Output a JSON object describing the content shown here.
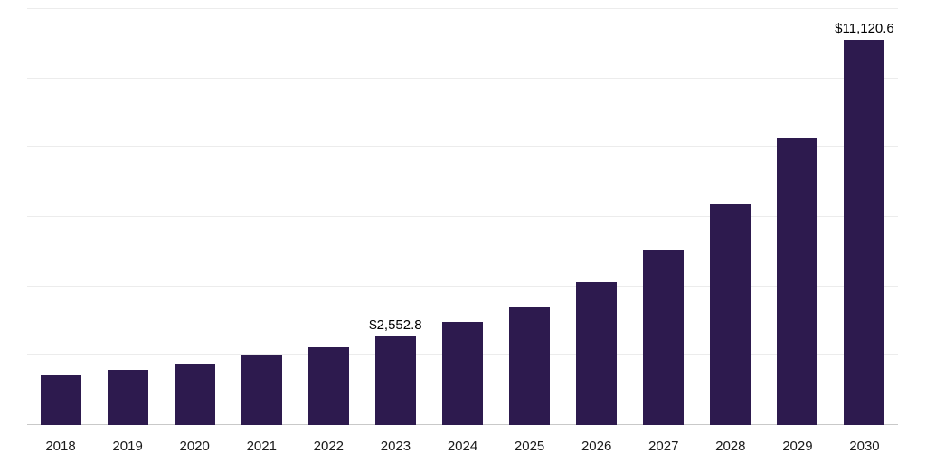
{
  "chart_data": {
    "type": "bar",
    "title": "",
    "xlabel": "",
    "ylabel": "",
    "categories": [
      "2018",
      "2019",
      "2020",
      "2021",
      "2022",
      "2023",
      "2024",
      "2025",
      "2026",
      "2027",
      "2028",
      "2029",
      "2030"
    ],
    "values": [
      1430,
      1590,
      1740,
      2000,
      2250,
      2552.8,
      2970,
      3430,
      4120,
      5060,
      6370,
      8260,
      11120.6
    ],
    "data_labels": [
      "",
      "",
      "",
      "",
      "",
      "$2,552.8",
      "",
      "",
      "",
      "",
      "",
      "",
      "$11,120.6"
    ],
    "ylim": [
      0,
      12000
    ],
    "gridline_step": 2000,
    "grid": true,
    "legend": false,
    "y_tick_labels_visible": false,
    "bar_color": "#2d1a4e",
    "gridline_color": "#ececec",
    "baseline_color": "#c9c9c9",
    "label_color": "#000000",
    "tick_label_color": "#1a1a1a"
  }
}
